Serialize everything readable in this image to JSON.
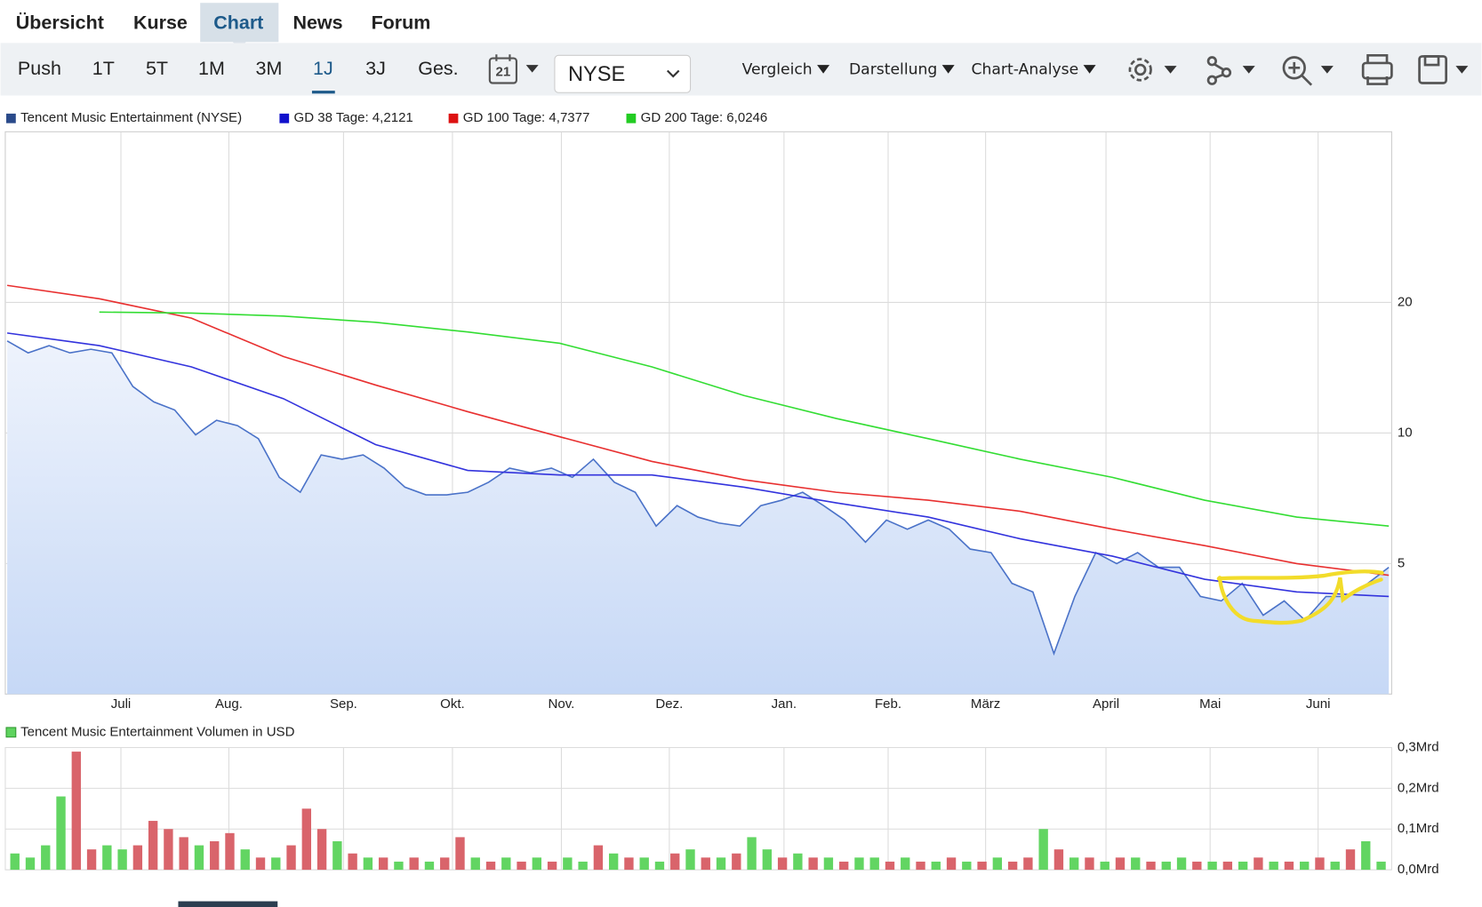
{
  "nav": {
    "tabs": [
      "Übersicht",
      "Kurse",
      "Chart",
      "News",
      "Forum"
    ]
  },
  "toolbar": {
    "ranges": [
      "Push",
      "1T",
      "5T",
      "1M",
      "3M",
      "1J",
      "3J",
      "Ges."
    ],
    "calendar_day": "21",
    "exchange": "NYSE",
    "menus": [
      "Vergleich",
      "Darstellung",
      "Chart-Analyse"
    ]
  },
  "chart_data": [
    {
      "type": "line",
      "yscale": "log",
      "ylim": [
        2.5,
        49.5
      ],
      "yticks": [
        5,
        10,
        20
      ],
      "xticks": [
        "Juli",
        "Aug.",
        "Sep.",
        "Okt.",
        "Nov.",
        "Dez.",
        "Jan.",
        "Feb.",
        "März",
        "April",
        "Mai",
        "Juni"
      ],
      "grid": true,
      "series": [
        {
          "name": "Tencent Music Entertainment (NYSE)",
          "color": "#4a72c8",
          "legend_color": "#2a4a8a",
          "fill": "#c6d8f6",
          "values": [
            16.3,
            15.3,
            15.9,
            15.3,
            15.6,
            15.3,
            12.8,
            11.8,
            11.3,
            9.9,
            10.7,
            10.4,
            9.7,
            7.9,
            7.3,
            8.9,
            8.7,
            8.9,
            8.3,
            7.5,
            7.2,
            7.2,
            7.3,
            7.7,
            8.3,
            8.1,
            8.3,
            7.9,
            8.7,
            7.7,
            7.3,
            6.1,
            6.8,
            6.4,
            6.2,
            6.1,
            6.8,
            7.0,
            7.3,
            6.8,
            6.3,
            5.6,
            6.3,
            6.0,
            6.3,
            6.0,
            5.4,
            5.3,
            4.5,
            4.3,
            3.1,
            4.2,
            5.3,
            5.0,
            5.3,
            4.9,
            4.9,
            4.2,
            4.1,
            4.5,
            3.8,
            4.1,
            3.7,
            4.2,
            4.2,
            4.5,
            4.9
          ]
        },
        {
          "name": "GD 38 Tage: 4,2121",
          "color": "#3333dd",
          "legend_color": "#1111cc",
          "values": [
            17.0,
            15.9,
            14.2,
            12.0,
            9.4,
            8.2,
            8.0,
            8.0,
            7.5,
            6.9,
            6.4,
            5.7,
            5.2,
            4.6,
            4.3,
            4.2
          ]
        },
        {
          "name": "GD 100 Tage: 4,7377",
          "color": "#e83030",
          "legend_color": "#dd1111",
          "values": [
            21.9,
            20.4,
            18.4,
            15.0,
            12.9,
            11.2,
            9.8,
            8.6,
            7.8,
            7.3,
            7.0,
            6.6,
            6.0,
            5.5,
            5.0,
            4.7
          ]
        },
        {
          "name": "GD 200 Tage: 6,0246",
          "color": "#33dd33",
          "legend_color": "#22cc22",
          "values": [
            null,
            19.0,
            18.9,
            18.6,
            18.0,
            17.1,
            16.1,
            14.2,
            12.2,
            10.8,
            9.7,
            8.7,
            7.9,
            7.0,
            6.4,
            6.1
          ]
        }
      ]
    },
    {
      "type": "bar",
      "legend": "Tencent Music Entertainment Volumen in USD",
      "legend_color": "#5ed35e",
      "ylim": [
        0,
        0.3
      ],
      "yticks": [
        {
          "value": 0,
          "label": "0,0Mrd"
        },
        {
          "value": 0.1,
          "label": "0,1Mrd"
        },
        {
          "value": 0.2,
          "label": "0,2Mrd"
        },
        {
          "value": 0.3,
          "label": "0,3Mrd"
        }
      ],
      "values": [
        0.04,
        0.03,
        0.06,
        0.18,
        0.29,
        0.05,
        0.06,
        0.05,
        0.06,
        0.12,
        0.1,
        0.08,
        0.06,
        0.07,
        0.09,
        0.05,
        0.03,
        0.03,
        0.06,
        0.15,
        0.1,
        0.07,
        0.04,
        0.03,
        0.03,
        0.02,
        0.03,
        0.02,
        0.03,
        0.08,
        0.03,
        0.02,
        0.03,
        0.02,
        0.03,
        0.02,
        0.03,
        0.02,
        0.06,
        0.04,
        0.03,
        0.03,
        0.02,
        0.04,
        0.05,
        0.03,
        0.03,
        0.04,
        0.08,
        0.05,
        0.03,
        0.04,
        0.03,
        0.03,
        0.02,
        0.03,
        0.03,
        0.02,
        0.03,
        0.02,
        0.02,
        0.03,
        0.02,
        0.02,
        0.03,
        0.02,
        0.03,
        0.1,
        0.05,
        0.03,
        0.03,
        0.02,
        0.03,
        0.03,
        0.02,
        0.02,
        0.03,
        0.02,
        0.02,
        0.02,
        0.02,
        0.03,
        0.02,
        0.02,
        0.02,
        0.03,
        0.02,
        0.05,
        0.07,
        0.02
      ],
      "colors": [
        "#62d562",
        "#62d562",
        "#62d562",
        "#62d562",
        "#d9646b",
        "#d9646b",
        "#62d562",
        "#62d562",
        "#d9646b",
        "#d9646b",
        "#d9646b",
        "#d9646b",
        "#62d562",
        "#d9646b",
        "#d9646b",
        "#62d562",
        "#d9646b",
        "#62d562",
        "#d9646b",
        "#d9646b",
        "#d9646b",
        "#62d562",
        "#d9646b",
        "#62d562",
        "#d9646b",
        "#62d562",
        "#d9646b",
        "#62d562",
        "#d9646b",
        "#d9646b",
        "#62d562",
        "#d9646b",
        "#62d562",
        "#d9646b",
        "#62d562",
        "#d9646b",
        "#62d562",
        "#62d562",
        "#d9646b",
        "#62d562",
        "#d9646b",
        "#62d562",
        "#62d562",
        "#d9646b",
        "#62d562",
        "#d9646b",
        "#62d562",
        "#d9646b",
        "#62d562",
        "#62d562",
        "#d9646b",
        "#62d562",
        "#d9646b",
        "#62d562",
        "#d9646b",
        "#62d562",
        "#62d562",
        "#d9646b",
        "#62d562",
        "#d9646b",
        "#62d562",
        "#d9646b",
        "#62d562",
        "#d9646b",
        "#62d562",
        "#d9646b",
        "#d9646b",
        "#62d562",
        "#d9646b",
        "#62d562",
        "#d9646b",
        "#62d562",
        "#d9646b",
        "#62d562",
        "#d9646b",
        "#62d562",
        "#62d562",
        "#d9646b",
        "#62d562",
        "#d9646b",
        "#62d562",
        "#d9646b",
        "#62d562",
        "#d9646b",
        "#62d562",
        "#d9646b",
        "#62d562",
        "#d9646b",
        "#62d562",
        "#62d562"
      ]
    }
  ]
}
